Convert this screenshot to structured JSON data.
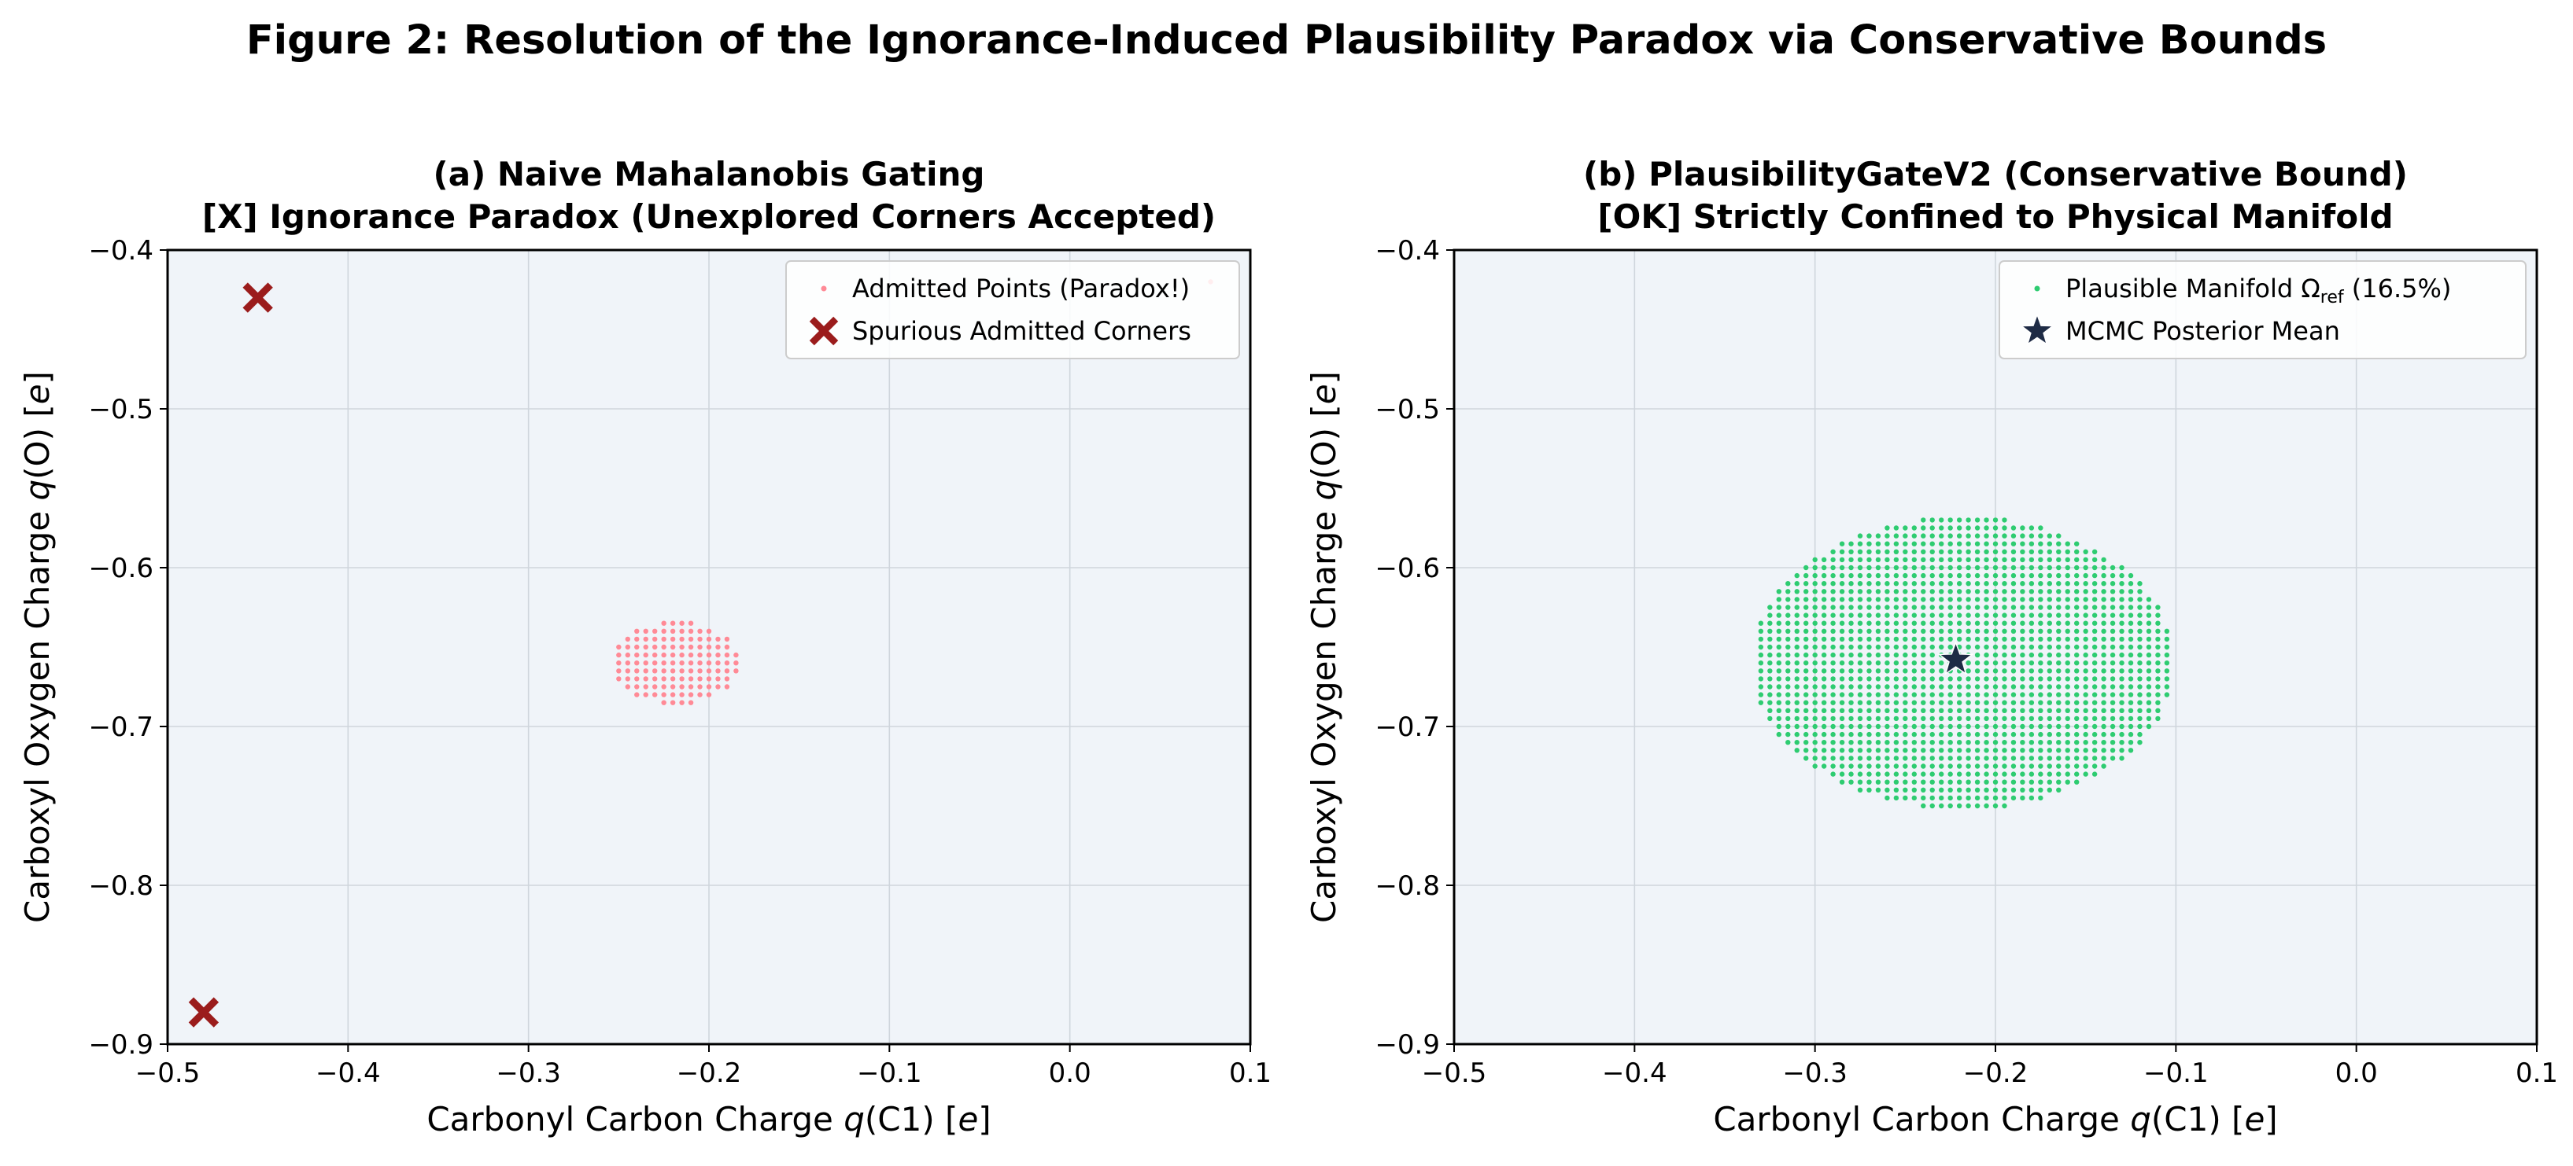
{
  "figure": {
    "title": "Figure 2: Resolution of the Ignorance-Induced Plausibility Paradox via Conservative Bounds"
  },
  "chart_data": [
    {
      "type": "scatter",
      "title_line1": "(a) Naive Mahalanobis Gating",
      "title_line2": "[X] Ignorance Paradox (Unexplored Corners Accepted)",
      "xlabel": "Carbonyl Carbon Charge q(C1) [e]",
      "ylabel": "Carboxyl Oxygen Charge q(O) [e]",
      "xlim": [
        -0.5,
        0.1
      ],
      "ylim": [
        -0.9,
        -0.4
      ],
      "xticks": [
        "−0.5",
        "−0.4",
        "−0.3",
        "−0.2",
        "−0.1",
        "0.0",
        "0.1"
      ],
      "yticks": [
        "−0.4",
        "−0.5",
        "−0.6",
        "−0.7",
        "−0.8",
        "−0.9"
      ],
      "grid": true,
      "background": "#f0f4f9",
      "legend_position": "top-right",
      "series": [
        {
          "name": "Admitted Points (Paradox!)",
          "marker": "dot",
          "color": "#ff8a96",
          "region": {
            "shape": "ellipse",
            "center": [
              -0.218,
              -0.66
            ],
            "semi_axes": [
              0.035,
              0.026
            ]
          },
          "grid_step": [
            0.005,
            0.005
          ],
          "extra_points": [
            [
              0.078,
              -0.42
            ]
          ]
        },
        {
          "name": "Spurious Admitted Corners",
          "marker": "x",
          "color": "#9b1c1c",
          "points": [
            [
              -0.45,
              -0.43
            ],
            [
              -0.48,
              -0.88
            ]
          ]
        }
      ]
    },
    {
      "type": "scatter",
      "title_line1": "(b) PlausibilityGateV2 (Conservative Bound)",
      "title_line2": "[OK] Strictly Confined to Physical Manifold",
      "xlabel": "Carbonyl Carbon Charge q(C1) [e]",
      "ylabel": "Carboxyl Oxygen Charge q(O) [e]",
      "xlim": [
        -0.5,
        0.1
      ],
      "ylim": [
        -0.9,
        -0.4
      ],
      "xticks": [
        "−0.5",
        "−0.4",
        "−0.3",
        "−0.2",
        "−0.1",
        "0.0",
        "0.1"
      ],
      "yticks": [
        "−0.4",
        "−0.5",
        "−0.6",
        "−0.7",
        "−0.8",
        "−0.9"
      ],
      "grid": true,
      "background": "#f0f4f9",
      "legend_position": "top-right",
      "series": [
        {
          "name": "Plausible Manifold Ω",
          "name_sub": "ref",
          "name_suffix": " (16.5%)",
          "marker": "dot",
          "color": "#2ecc71",
          "region": {
            "shape": "ellipse",
            "center": [
              -0.218,
              -0.66
            ],
            "semi_axes": [
              0.117,
              0.092
            ]
          },
          "grid_step": [
            0.005,
            0.005
          ]
        },
        {
          "name": "MCMC Posterior Mean",
          "marker": "star",
          "color": "#1e2b45",
          "points": [
            [
              -0.222,
              -0.658
            ]
          ]
        }
      ]
    }
  ]
}
